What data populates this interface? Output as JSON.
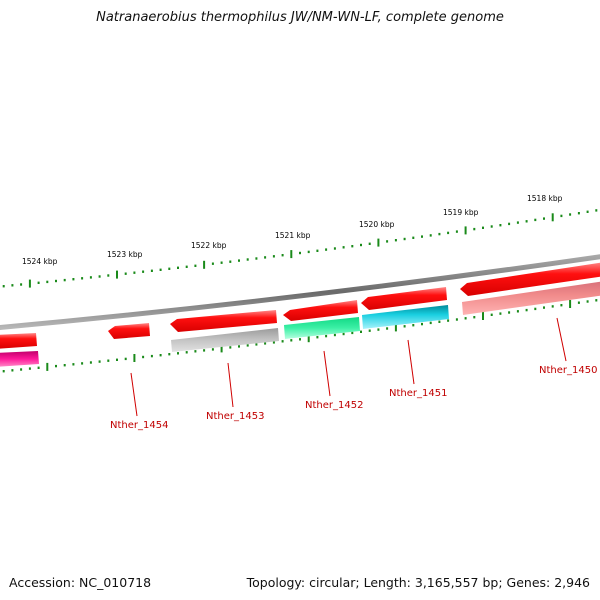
{
  "title": "Natranaerobius thermophilus JW/NM-WN-LF, complete genome",
  "footer": {
    "accession": "Accession: NC_010718",
    "summary": "Topology: circular; Length: 3,165,557 bp; Genes: 2,946"
  },
  "colors": {
    "backbone": "#7a7a7a",
    "tick": "#1a8a1a",
    "gene_label": "#c00000",
    "forward_gene": "#ff0000"
  },
  "kbp_ticks": [
    "1524 kbp",
    "1523 kbp",
    "1522 kbp",
    "1521 kbp",
    "1520 kbp",
    "1519 kbp",
    "1518 kbp"
  ],
  "gene_labels": [
    "Nther_1454",
    "Nther_1453",
    "Nther_1452",
    "Nther_1451",
    "Nther_1450"
  ]
}
